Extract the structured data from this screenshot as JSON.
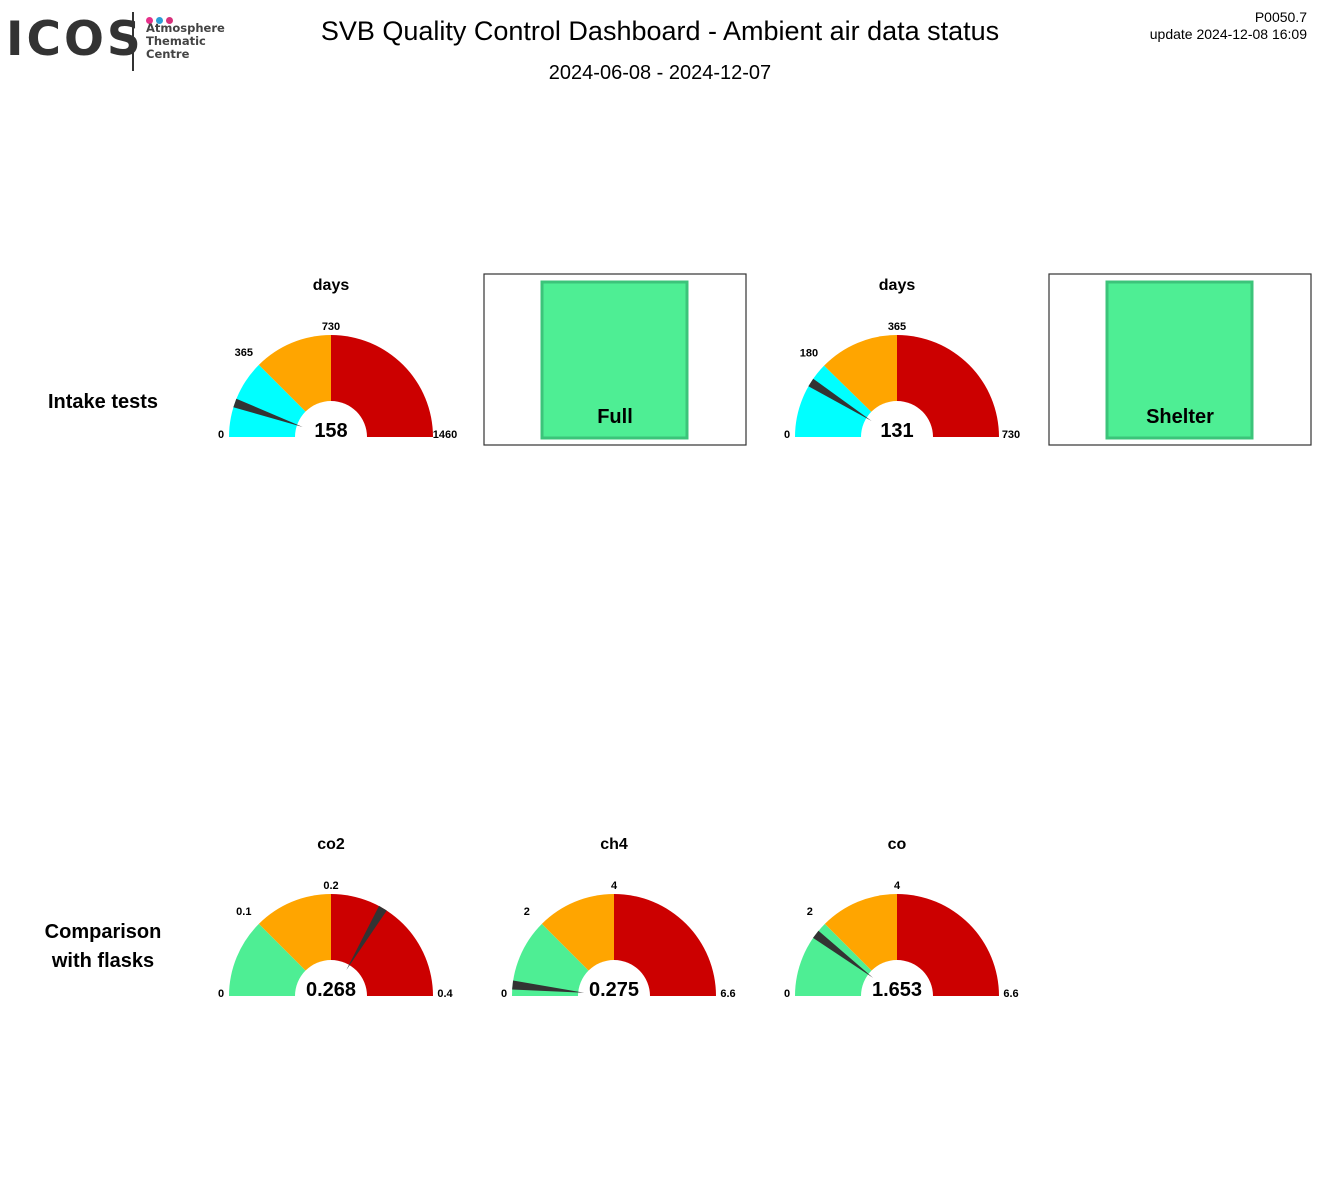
{
  "header": {
    "logo_text": "ICOS",
    "logo_sub": [
      "Atmosphere",
      "Thematic",
      "Centre"
    ],
    "title": "SVB  Quality Control Dashboard - Ambient air data status",
    "subtitle": "2024-06-08 - 2024-12-07",
    "code": "P0050.7",
    "update": "update  2024-12-08 16:09"
  },
  "colors": {
    "cyan": "#00ffff",
    "orange": "#ffa500",
    "red": "#cc0000",
    "green": "#4eee94",
    "needle": "#333333",
    "logo_pink": "#e6308a",
    "logo_blue": "#2a9fd6",
    "logo_magenta": "#d6307a"
  },
  "rows": [
    {
      "label_lines": [
        "Intake tests"
      ]
    },
    {
      "label_lines": [
        "Comparison",
        "with flasks"
      ]
    }
  ],
  "chart_data": [
    {
      "type": "gauge",
      "title": "days",
      "min": 0,
      "max": 1460,
      "value": 158,
      "value_label": "158",
      "ticks": [
        "0",
        "365",
        "730",
        "1460"
      ],
      "bands": [
        {
          "from": 0,
          "to": 365,
          "color": "#00ffff"
        },
        {
          "from": 365,
          "to": 730,
          "color": "#ffa500"
        },
        {
          "from": 730,
          "to": 1460,
          "color": "#cc0000"
        }
      ]
    },
    {
      "type": "status",
      "label": "Full",
      "color": "#4eee94"
    },
    {
      "type": "gauge",
      "title": "days",
      "min": 0,
      "max": 730,
      "value": 131,
      "value_label": "131",
      "ticks": [
        "0",
        "180",
        "365",
        "730"
      ],
      "bands": [
        {
          "from": 0,
          "to": 180,
          "color": "#00ffff"
        },
        {
          "from": 180,
          "to": 365,
          "color": "#ffa500"
        },
        {
          "from": 365,
          "to": 730,
          "color": "#cc0000"
        }
      ]
    },
    {
      "type": "status",
      "label": "Shelter",
      "color": "#4eee94"
    },
    {
      "type": "gauge",
      "title": "co2",
      "min": 0,
      "max": 0.4,
      "value": 0.268,
      "value_label": "0.268",
      "ticks": [
        "0",
        "0.1",
        "0.2",
        "0.4"
      ],
      "bands": [
        {
          "from": 0,
          "to": 0.1,
          "color": "#4eee94"
        },
        {
          "from": 0.1,
          "to": 0.2,
          "color": "#ffa500"
        },
        {
          "from": 0.2,
          "to": 0.4,
          "color": "#cc0000"
        }
      ]
    },
    {
      "type": "gauge",
      "title": "ch4",
      "min": 0,
      "max": 6.6,
      "value": 0.275,
      "value_label": "0.275",
      "ticks": [
        "0",
        "2",
        "4",
        "6.6"
      ],
      "bands": [
        {
          "from": 0,
          "to": 2,
          "color": "#4eee94"
        },
        {
          "from": 2,
          "to": 4,
          "color": "#ffa500"
        },
        {
          "from": 4,
          "to": 6.6,
          "color": "#cc0000"
        }
      ]
    },
    {
      "type": "gauge",
      "title": "co",
      "min": 0,
      "max": 6.6,
      "value": 1.653,
      "value_label": "1.653",
      "ticks": [
        "0",
        "2",
        "4",
        "6.6"
      ],
      "bands": [
        {
          "from": 0,
          "to": 2,
          "color": "#4eee94"
        },
        {
          "from": 2,
          "to": 4,
          "color": "#ffa500"
        },
        {
          "from": 4,
          "to": 6.6,
          "color": "#cc0000"
        }
      ]
    }
  ]
}
